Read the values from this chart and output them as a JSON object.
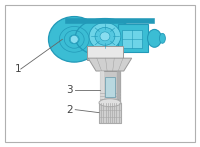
{
  "bg_color": "#ffffff",
  "border_color": "#b0b0b0",
  "body_blue": "#3bbdd4",
  "body_blue_dark": "#2299b8",
  "body_blue_light": "#6dd4e8",
  "body_blue_inner": "#88ddf0",
  "stem_gray": "#c8c8c8",
  "stem_dark": "#999999",
  "stem_light": "#e0e0e0",
  "cap_gray": "#d0d0d0",
  "cap_dark": "#aaaaaa",
  "label_color": "#444444",
  "line_color": "#666666",
  "fig_w": 2.0,
  "fig_h": 1.47,
  "dpi": 100
}
